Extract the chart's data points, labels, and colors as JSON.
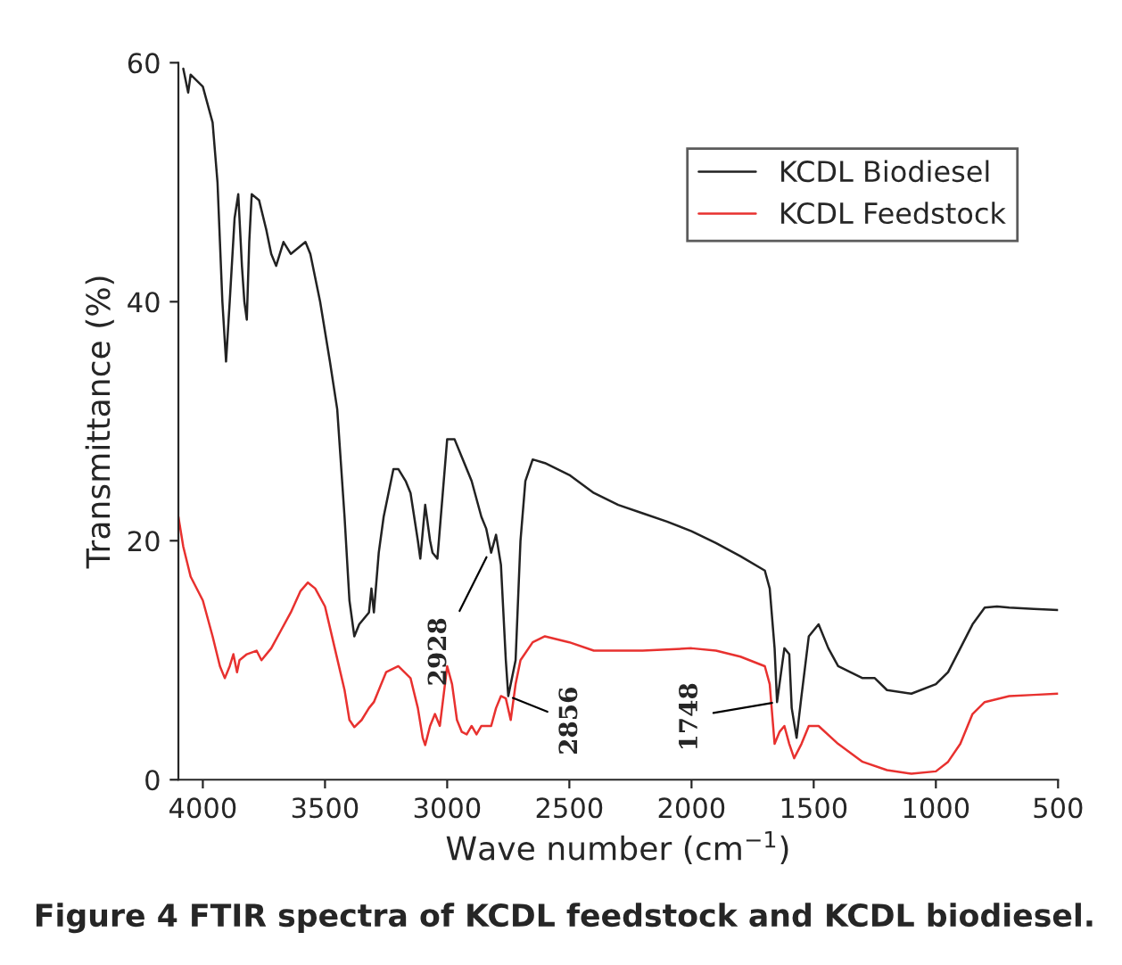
{
  "chart_data": {
    "type": "line",
    "xlabel": "Wave number (cm$^{−1}$)",
    "ylabel": "Transmittance (%)",
    "xlim": [
      4100,
      500
    ],
    "xticks": [
      4000,
      3500,
      3000,
      2500,
      2000,
      1500,
      1000,
      500
    ],
    "ylim": [
      0,
      60
    ],
    "yticks": [
      0,
      20,
      40,
      60
    ],
    "grid": false,
    "legend": "top right",
    "marker": "none",
    "line_style": "solid",
    "series": [
      {
        "name": "KCDL Biodiesel",
        "color": "#222222",
        "x": [
          4080,
          4060,
          4050,
          4000,
          3960,
          3940,
          3920,
          3905,
          3890,
          3870,
          3855,
          3840,
          3830,
          3820,
          3810,
          3800,
          3770,
          3740,
          3720,
          3700,
          3670,
          3640,
          3610,
          3580,
          3560,
          3520,
          3480,
          3450,
          3420,
          3400,
          3380,
          3360,
          3320,
          3310,
          3300,
          3280,
          3260,
          3220,
          3200,
          3170,
          3150,
          3120,
          3110,
          3090,
          3070,
          3060,
          3040,
          3000,
          2970,
          2940,
          2900,
          2860,
          2840,
          2820,
          2800,
          2780,
          2760,
          2750,
          2720,
          2700,
          2680,
          2650,
          2600,
          2500,
          2400,
          2300,
          2200,
          2100,
          2000,
          1900,
          1800,
          1700,
          1680,
          1660,
          1650,
          1640,
          1620,
          1600,
          1590,
          1570,
          1550,
          1520,
          1480,
          1440,
          1400,
          1350,
          1300,
          1250,
          1200,
          1100,
          1000,
          950,
          900,
          850,
          800,
          750,
          700,
          600,
          500
        ],
        "values": [
          59.5,
          57.5,
          59,
          58,
          55,
          50,
          40,
          35,
          40,
          47,
          49,
          43,
          40,
          38.5,
          45,
          49,
          48.5,
          46,
          44,
          43,
          45,
          44,
          44.5,
          45,
          44,
          40,
          35,
          31,
          22,
          15,
          12,
          13,
          14,
          16,
          14,
          19,
          22,
          26,
          26,
          25,
          24,
          20,
          18.5,
          23,
          20,
          19,
          18.5,
          28.5,
          28.5,
          27,
          25,
          22,
          21,
          19,
          20.5,
          18,
          10,
          7,
          10,
          20,
          25,
          26.8,
          26.5,
          25.5,
          24,
          23,
          22.3,
          21.6,
          20.8,
          19.8,
          18.7,
          17.5,
          16,
          11,
          6.5,
          8,
          11,
          10.5,
          6,
          3.5,
          7,
          12,
          13,
          11,
          9.5,
          9,
          8.5,
          8.5,
          7.5,
          7.2,
          8,
          9,
          11,
          13,
          14.4,
          14.5,
          14.4,
          14.3,
          14.2
        ]
      },
      {
        "name": "KCDL Feedstock",
        "color": "#e8312f",
        "x": [
          4100,
          4080,
          4050,
          4000,
          3960,
          3930,
          3910,
          3890,
          3875,
          3860,
          3850,
          3820,
          3780,
          3760,
          3720,
          3680,
          3640,
          3600,
          3570,
          3540,
          3500,
          3460,
          3420,
          3400,
          3380,
          3350,
          3320,
          3300,
          3250,
          3200,
          3150,
          3120,
          3100,
          3090,
          3070,
          3050,
          3030,
          3000,
          2980,
          2960,
          2940,
          2920,
          2900,
          2880,
          2860,
          2820,
          2800,
          2780,
          2760,
          2740,
          2720,
          2700,
          2650,
          2600,
          2500,
          2400,
          2200,
          2000,
          1900,
          1800,
          1700,
          1680,
          1660,
          1640,
          1620,
          1600,
          1580,
          1550,
          1520,
          1480,
          1400,
          1300,
          1200,
          1100,
          1000,
          950,
          900,
          850,
          800,
          700,
          600,
          500
        ],
        "values": [
          22,
          19.5,
          17,
          15,
          12,
          9.5,
          8.5,
          9.5,
          10.5,
          9,
          10,
          10.5,
          10.8,
          10,
          11,
          12.5,
          14,
          15.8,
          16.5,
          16,
          14.5,
          11,
          7.5,
          5,
          4.4,
          5,
          6,
          6.5,
          9,
          9.5,
          8.5,
          6,
          3.5,
          2.9,
          4.5,
          5.5,
          4.5,
          9.5,
          8,
          5,
          4,
          3.8,
          4.5,
          3.8,
          4.5,
          4.5,
          6,
          7,
          6.8,
          5,
          8,
          10,
          11.5,
          12,
          11.5,
          10.8,
          10.8,
          11,
          10.8,
          10.3,
          9.5,
          8,
          3,
          4,
          4.5,
          3,
          1.8,
          3,
          4.5,
          4.5,
          3,
          1.5,
          0.8,
          0.5,
          0.7,
          1.5,
          3,
          5.5,
          6.5,
          7,
          7.1,
          7.2
        ]
      }
    ],
    "annotations": [
      {
        "text": "2928",
        "x": 2830,
        "y": 19
      },
      {
        "text": "2856",
        "x": 2750,
        "y": 7
      },
      {
        "text": "1748",
        "x": 1650,
        "y": 6.5
      },
      "Figure 4 FTIR spectra of KCDL feedstock and KCDL biodiesel."
    ]
  }
}
